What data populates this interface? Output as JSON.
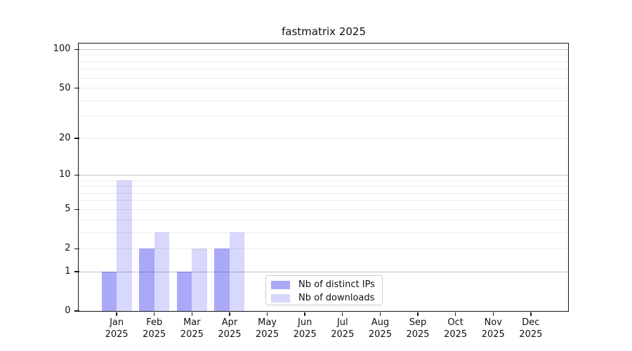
{
  "chart_data": {
    "type": "bar",
    "title": "fastmatrix 2025",
    "categories": [
      "Jan 2025",
      "Feb 2025",
      "Mar 2025",
      "Apr 2025",
      "May 2025",
      "Jun 2025",
      "Jul 2025",
      "Aug 2025",
      "Sep 2025",
      "Oct 2025",
      "Nov 2025",
      "Dec 2025"
    ],
    "series": [
      {
        "name": "Nb of distinct IPs",
        "color": "#0a0aeb",
        "alpha": 0.35,
        "values": [
          1,
          2,
          1,
          2,
          0,
          0,
          0,
          0,
          0,
          0,
          0,
          0
        ]
      },
      {
        "name": "Nb of downloads",
        "color": "#0a0aeb",
        "alpha": 0.16,
        "values": [
          9,
          3,
          2,
          3,
          0,
          0,
          0,
          0,
          0,
          0,
          0,
          0
        ]
      }
    ],
    "xlabel": "",
    "ylabel": "",
    "y_ticks": [
      0,
      1,
      2,
      5,
      10,
      20,
      50,
      100
    ],
    "ylim": [
      0,
      111
    ],
    "scale": "log1p",
    "grid": {
      "major_values": [
        1,
        10,
        100
      ],
      "minor_values": [
        2,
        3,
        4,
        5,
        6,
        7,
        8,
        9,
        20,
        30,
        40,
        50,
        60,
        70,
        80,
        90
      ],
      "major_color": "#c4c4c4",
      "minor_color": "#ececec"
    },
    "legend_position": "lower center inside",
    "axis_color": "#151515",
    "background_color": "#ffffff"
  }
}
